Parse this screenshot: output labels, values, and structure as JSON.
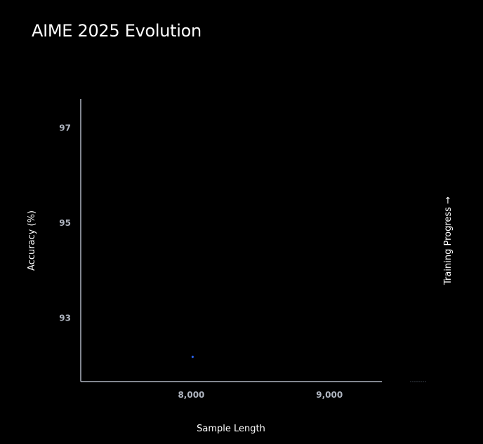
{
  "chart_data": {
    "type": "scatter",
    "title": "AIME 2025 Evolution",
    "xlabel": "Sample Length",
    "ylabel": "Accuracy (%)",
    "colorbar_label": "Training Progress →",
    "x_ticks": [
      8000,
      9000
    ],
    "x_tick_labels": [
      "8,000",
      "9,000"
    ],
    "y_ticks": [
      93,
      95,
      97
    ],
    "y_tick_labels": [
      "93",
      "95",
      "97"
    ],
    "xlim": [
      7200,
      9380
    ],
    "ylim": [
      91.65,
      97.6
    ],
    "grid": false,
    "points": [
      {
        "x": 8010,
        "y": 92.17
      }
    ],
    "colors": {
      "background": "#000000",
      "axis": "#aeb4bf",
      "point": "#2f6bff"
    }
  }
}
